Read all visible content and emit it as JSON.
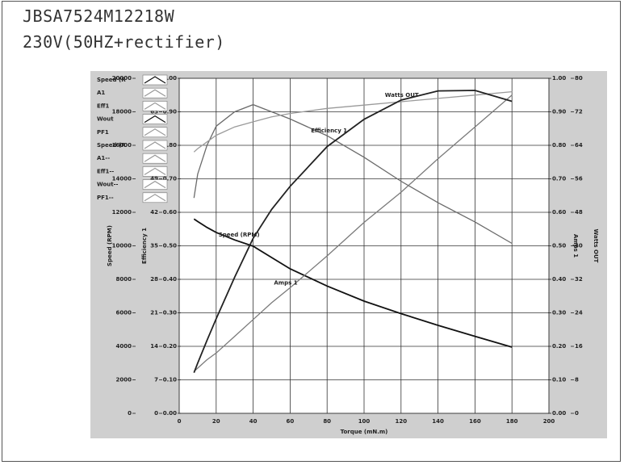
{
  "header": {
    "model": "JBSA7524M12218W",
    "supply": "230V(50HZ+rectifier)"
  },
  "chart_data": {
    "type": "line",
    "xlabel": "Torque (mN.m)",
    "xlim": [
      0,
      200
    ],
    "xticks": [
      0,
      20,
      40,
      60,
      80,
      100,
      120,
      140,
      160,
      180,
      200
    ],
    "grid": true,
    "axes": [
      {
        "title": "Speed (RPM)",
        "lim": [
          0,
          20000
        ],
        "ticks": [
          0,
          2000,
          4000,
          6000,
          8000,
          10000,
          12000,
          14000,
          16000,
          18000,
          20000
        ]
      },
      {
        "title": "Efficiency 1",
        "lim": [
          0,
          70
        ],
        "ticks": [
          0,
          7,
          14,
          21,
          28,
          35,
          42,
          49,
          56,
          63,
          70
        ]
      },
      {
        "lim": [
          0,
          1
        ],
        "ticks": [
          {
            "value": 0,
            "label": "0.00"
          },
          {
            "value": 0.1,
            "label": "0.10"
          },
          {
            "value": 0.2,
            "label": "0.20"
          },
          {
            "value": 0.3,
            "label": "0.30"
          },
          {
            "value": 0.4,
            "label": "0.40"
          },
          {
            "value": 0.5,
            "label": "0.50"
          },
          {
            "value": 0.6,
            "label": "0.60"
          },
          {
            "value": 0.7,
            "label": "0.70"
          },
          {
            "value": 0.8,
            "label": "0.80"
          },
          {
            "value": 0.9,
            "label": "0.90"
          },
          {
            "value": 1,
            "label": "1.00"
          }
        ]
      },
      {
        "title": "Amps 1",
        "lim": [
          0,
          1
        ],
        "ticks": [
          {
            "value": 0,
            "label": "0.00"
          },
          {
            "value": 0.1,
            "label": "0.10"
          },
          {
            "value": 0.2,
            "label": "0.20"
          },
          {
            "value": 0.3,
            "label": "0.30"
          },
          {
            "value": 0.4,
            "label": "0.40"
          },
          {
            "value": 0.5,
            "label": "0.50"
          },
          {
            "value": 0.6,
            "label": "0.60"
          },
          {
            "value": 0.7,
            "label": "0.70"
          },
          {
            "value": 0.8,
            "label": "0.80"
          },
          {
            "value": 0.9,
            "label": "0.90"
          },
          {
            "value": 1,
            "label": "1.00"
          }
        ]
      },
      {
        "title": "Watts OUT",
        "lim": [
          0,
          80
        ],
        "ticks": [
          0,
          8,
          16,
          24,
          32,
          40,
          48,
          56,
          64,
          72,
          80
        ]
      }
    ],
    "x": [
      8,
      10,
      15,
      20,
      30,
      40,
      50,
      60,
      80,
      100,
      120,
      140,
      160,
      180
    ],
    "series": [
      {
        "label": "Speed (RPM)",
        "axis": 0,
        "color": "#111111",
        "values": [
          11600,
          11450,
          11100,
          10800,
          10350,
          9975,
          9300,
          8626,
          7600,
          6699,
          5950,
          5253,
          4600,
          3952
        ]
      },
      {
        "label": "Efficiency 1",
        "axis": 1,
        "color": "#6a6a6a",
        "values": [
          45,
          50,
          56,
          60,
          63,
          64.5,
          63,
          61.5,
          58,
          53.5,
          48.5,
          44,
          40,
          35.5
        ]
      },
      {
        "axis": 2,
        "color": "#9a9a9a",
        "values": [
          0.78,
          0.79,
          0.81,
          0.83,
          0.855,
          0.87,
          0.885,
          0.895,
          0.91,
          0.92,
          0.93,
          0.94,
          0.95,
          0.96
        ]
      },
      {
        "label": "Amps 1",
        "axis": 3,
        "color": "#7a7a7a",
        "values": [
          0.125,
          0.135,
          0.16,
          0.18,
          0.23,
          0.28,
          0.33,
          0.375,
          0.47,
          0.57,
          0.66,
          0.76,
          0.855,
          0.95
        ]
      },
      {
        "label": "Watts OUT",
        "axis": 4,
        "color": "#222222",
        "values": [
          9.7,
          12,
          17.4,
          22.6,
          32.5,
          41.8,
          48.7,
          54.2,
          63.7,
          70.2,
          74.8,
          77,
          77.1,
          74.5
        ]
      }
    ],
    "legend": [
      "Speed (R",
      "A1",
      "Eff1",
      "Wout",
      "PF1",
      "Speed (R",
      "A1--",
      "Eff1--",
      "Wout--",
      "PF1--"
    ]
  }
}
